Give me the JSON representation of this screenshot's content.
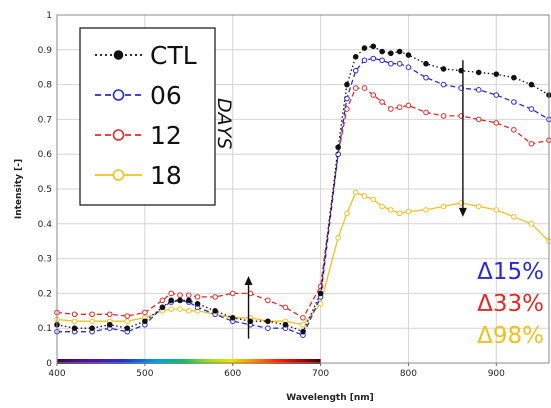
{
  "chart_data": {
    "type": "line",
    "title": "",
    "xlabel": "Wavelength [nm]",
    "ylabel": "Intensity [-]",
    "xlim": [
      400,
      960
    ],
    "ylim": [
      0,
      1
    ],
    "xticks": [
      400,
      500,
      600,
      700,
      800,
      900
    ],
    "yticks": [
      0,
      0.1,
      0.2,
      0.3,
      0.4,
      0.5,
      0.6,
      0.7,
      0.8,
      0.9,
      1
    ],
    "grid": true,
    "legend_position": "top-left",
    "legend_side_label": "DAYS",
    "spectrum_bar": {
      "x_range": [
        400,
        700
      ]
    },
    "series": [
      {
        "name": "CTL",
        "color": "#111111",
        "dash": "dotted",
        "marker": "filled-circle",
        "x": [
          400,
          420,
          440,
          460,
          480,
          500,
          520,
          530,
          540,
          550,
          560,
          580,
          600,
          620,
          640,
          660,
          680,
          700,
          720,
          730,
          740,
          750,
          760,
          770,
          780,
          790,
          800,
          820,
          840,
          860,
          880,
          900,
          920,
          940,
          960
        ],
        "y": [
          0.11,
          0.1,
          0.1,
          0.11,
          0.1,
          0.12,
          0.16,
          0.18,
          0.18,
          0.18,
          0.17,
          0.15,
          0.13,
          0.12,
          0.12,
          0.11,
          0.09,
          0.2,
          0.62,
          0.8,
          0.88,
          0.905,
          0.91,
          0.895,
          0.89,
          0.895,
          0.885,
          0.86,
          0.845,
          0.84,
          0.835,
          0.83,
          0.82,
          0.8,
          0.77
        ]
      },
      {
        "name": "06",
        "color": "#2a2ad8",
        "dash": "dashed",
        "marker": "open-circle",
        "x": [
          400,
          420,
          440,
          460,
          480,
          500,
          520,
          530,
          540,
          550,
          560,
          580,
          600,
          620,
          640,
          660,
          680,
          700,
          720,
          730,
          740,
          750,
          760,
          770,
          780,
          790,
          800,
          820,
          840,
          860,
          880,
          900,
          920,
          940,
          960
        ],
        "y": [
          0.09,
          0.09,
          0.09,
          0.1,
          0.09,
          0.11,
          0.16,
          0.175,
          0.18,
          0.175,
          0.16,
          0.14,
          0.12,
          0.11,
          0.1,
          0.1,
          0.08,
          0.19,
          0.6,
          0.76,
          0.84,
          0.87,
          0.875,
          0.87,
          0.86,
          0.86,
          0.85,
          0.82,
          0.8,
          0.79,
          0.785,
          0.77,
          0.75,
          0.73,
          0.7
        ]
      },
      {
        "name": "12",
        "color": "#e02a2a",
        "dash": "dashed",
        "marker": "open-circle",
        "x": [
          400,
          420,
          440,
          460,
          480,
          500,
          520,
          530,
          540,
          550,
          560,
          580,
          600,
          620,
          640,
          660,
          680,
          700,
          720,
          730,
          740,
          750,
          760,
          770,
          780,
          790,
          800,
          820,
          840,
          860,
          880,
          900,
          920,
          940,
          960
        ],
        "y": [
          0.145,
          0.14,
          0.14,
          0.14,
          0.135,
          0.145,
          0.18,
          0.2,
          0.195,
          0.195,
          0.19,
          0.19,
          0.2,
          0.2,
          0.18,
          0.16,
          0.13,
          0.22,
          0.6,
          0.73,
          0.79,
          0.79,
          0.77,
          0.75,
          0.73,
          0.735,
          0.74,
          0.72,
          0.71,
          0.71,
          0.7,
          0.69,
          0.67,
          0.63,
          0.64
        ]
      },
      {
        "name": "18",
        "color": "#f0c020",
        "dash": "solid",
        "marker": "open-circle",
        "x": [
          400,
          420,
          440,
          460,
          480,
          500,
          520,
          530,
          540,
          550,
          560,
          580,
          600,
          620,
          640,
          660,
          680,
          700,
          720,
          730,
          740,
          750,
          760,
          770,
          780,
          790,
          800,
          820,
          840,
          860,
          880,
          900,
          920,
          940,
          960
        ],
        "y": [
          0.125,
          0.12,
          0.12,
          0.12,
          0.12,
          0.13,
          0.15,
          0.155,
          0.155,
          0.15,
          0.15,
          0.14,
          0.13,
          0.13,
          0.12,
          0.12,
          0.11,
          0.17,
          0.36,
          0.43,
          0.49,
          0.48,
          0.47,
          0.45,
          0.44,
          0.43,
          0.435,
          0.44,
          0.45,
          0.46,
          0.45,
          0.44,
          0.42,
          0.4,
          0.35
        ]
      }
    ],
    "arrows": [
      {
        "direction": "up",
        "x": 618,
        "y_from": 0.07,
        "y_to": 0.25
      },
      {
        "direction": "down",
        "x": 862,
        "y_from": 0.87,
        "y_to": 0.42
      }
    ],
    "annotations": [
      {
        "text": "Δ15%",
        "color": "#2a2ad8"
      },
      {
        "text": "Δ33%",
        "color": "#e02a2a"
      },
      {
        "text": "Δ98%",
        "color": "#f0c020"
      }
    ]
  }
}
